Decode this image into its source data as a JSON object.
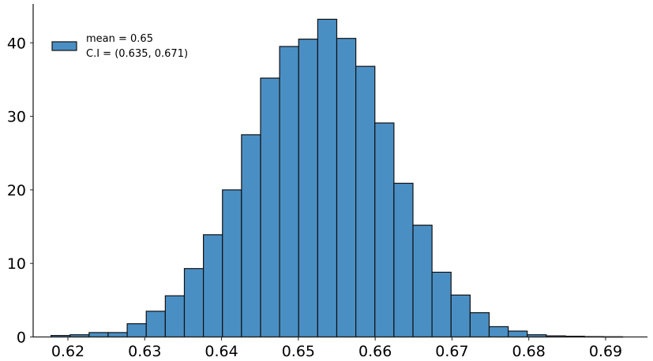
{
  "chart_data": {
    "type": "bar",
    "subtype": "histogram",
    "title": "",
    "xlabel": "",
    "ylabel": "",
    "xlim": [
      0.6155,
      0.6975
    ],
    "ylim": [
      0,
      45.5
    ],
    "grid": false,
    "legend_position": "upper left",
    "bin_start": 0.6178,
    "bin_width": 0.00248,
    "values": [
      0.2,
      0.3,
      0.6,
      0.6,
      1.8,
      3.5,
      5.6,
      9.3,
      13.9,
      20.0,
      27.5,
      35.2,
      39.5,
      40.5,
      43.2,
      40.6,
      36.8,
      29.1,
      20.9,
      15.2,
      8.8,
      5.7,
      3.3,
      1.4,
      0.8,
      0.3,
      0.15,
      0.1,
      0.05,
      0.03
    ],
    "x_ticks": [
      "0.62",
      "0.63",
      "0.64",
      "0.65",
      "0.66",
      "0.67",
      "0.68",
      "0.69"
    ],
    "y_ticks": [
      "0",
      "10",
      "20",
      "30",
      "40"
    ],
    "legend": [
      "mean = 0.65",
      "C.I = (0.635, 0.671)"
    ],
    "bar_color": "#4a8fc4",
    "edge_color": "#111111"
  },
  "legend": {
    "line1": "mean = 0.65",
    "line2": "C.I = (0.635, 0.671)"
  },
  "axes": {
    "x_ticks": [
      "0.62",
      "0.63",
      "0.64",
      "0.65",
      "0.66",
      "0.67",
      "0.68",
      "0.69"
    ],
    "y_ticks": [
      "0",
      "10",
      "20",
      "30",
      "40"
    ]
  }
}
